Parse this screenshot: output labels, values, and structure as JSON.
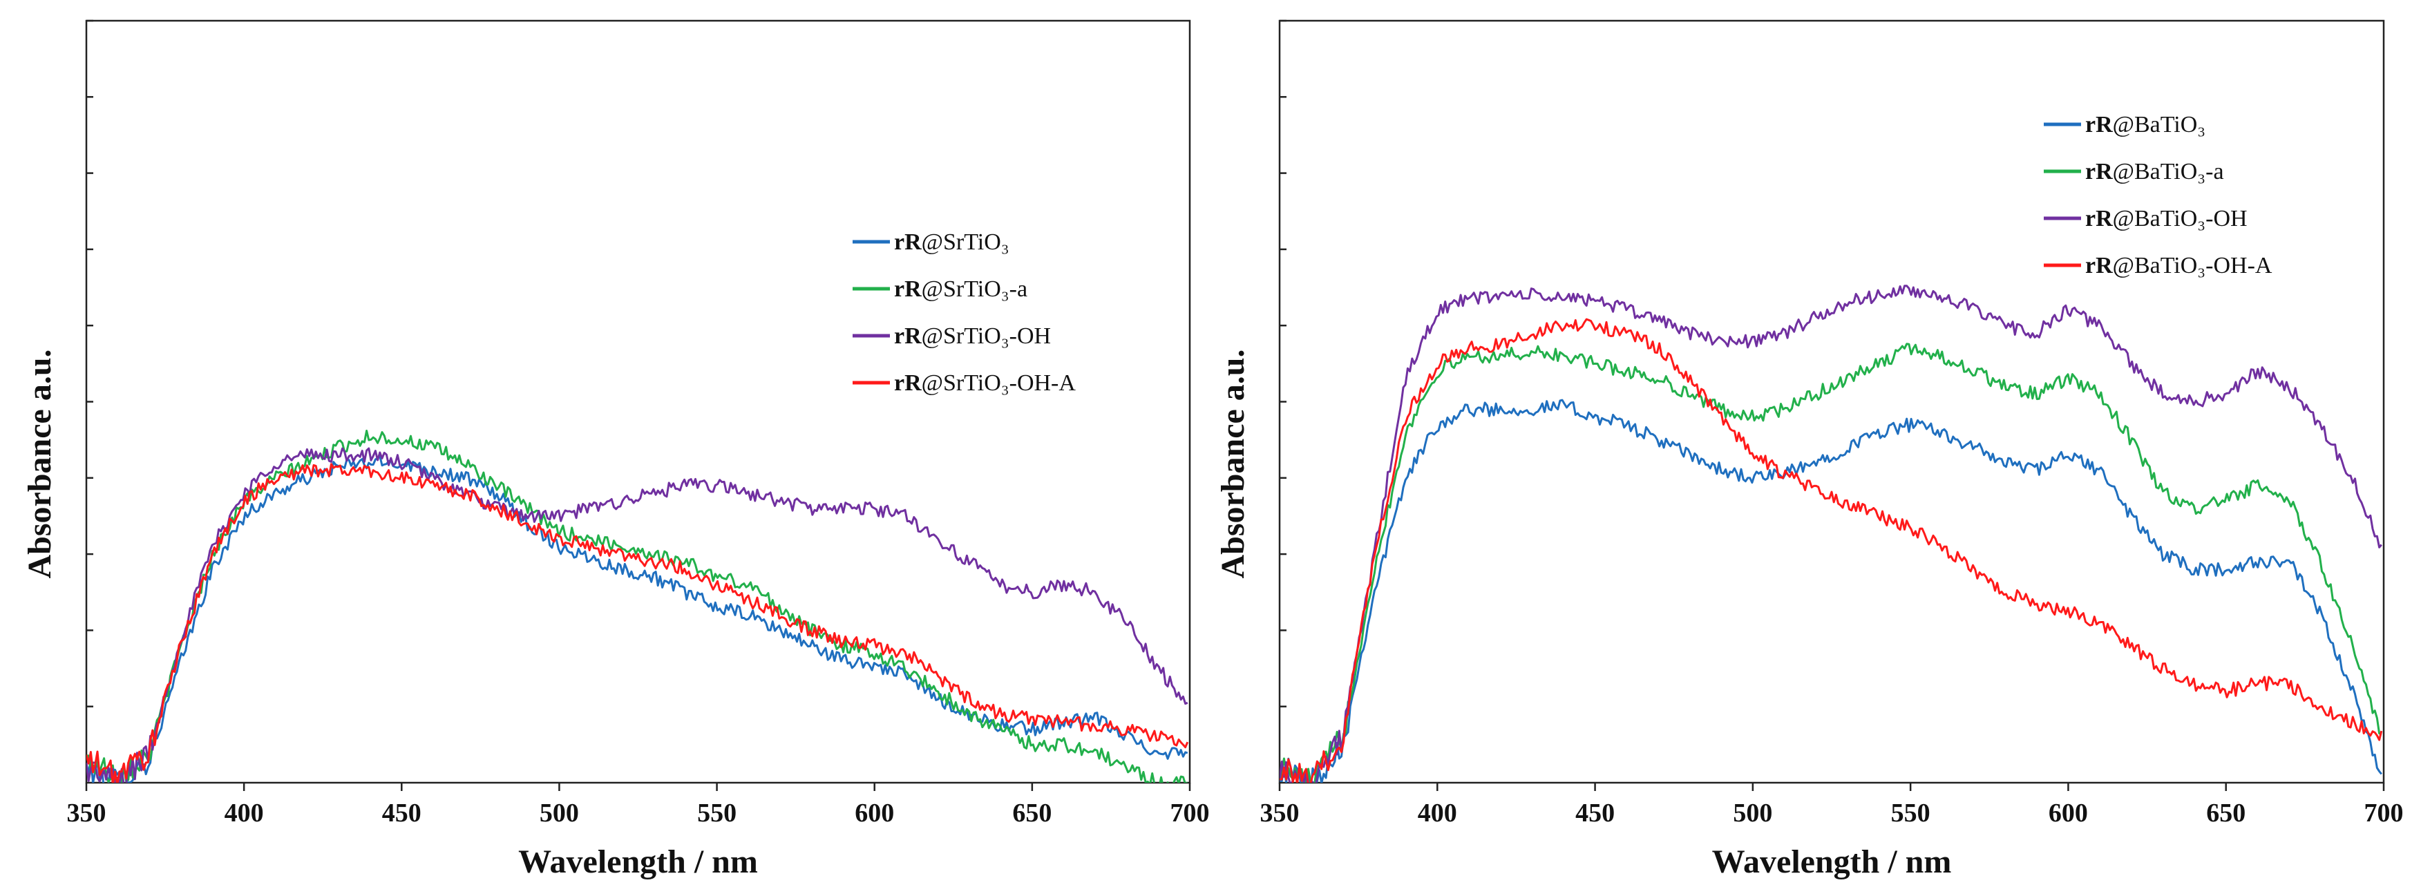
{
  "chart_data": [
    {
      "type": "line",
      "xlabel": "Wavelength / nm",
      "ylabel": "Absorbance a.u.",
      "xlim": [
        350,
        700
      ],
      "ylim": [
        0,
        1.0
      ],
      "xticks": [
        350,
        400,
        450,
        500,
        550,
        600,
        650,
        700
      ],
      "yticks_unlabeled": [
        0.1,
        0.2,
        0.3,
        0.4,
        0.5,
        0.6,
        0.7,
        0.8,
        0.9,
        1.0
      ],
      "legend_position": "upper-right",
      "series": [
        {
          "name": "rR@SrTiO₃",
          "label_bold": "rR",
          "label_rest": "@SrTiO₃",
          "color": "#1f6fbf",
          "x": [
            350,
            360,
            370,
            380,
            390,
            400,
            410,
            420,
            430,
            440,
            450,
            460,
            470,
            480,
            490,
            500,
            510,
            520,
            530,
            540,
            550,
            560,
            570,
            580,
            590,
            600,
            610,
            620,
            630,
            640,
            650,
            660,
            670,
            680,
            690,
            700
          ],
          "y": [
            0.02,
            0.0,
            0.03,
            0.16,
            0.28,
            0.35,
            0.38,
            0.4,
            0.415,
            0.42,
            0.42,
            0.41,
            0.4,
            0.38,
            0.34,
            0.31,
            0.295,
            0.28,
            0.27,
            0.25,
            0.23,
            0.22,
            0.2,
            0.18,
            0.16,
            0.155,
            0.14,
            0.11,
            0.09,
            0.075,
            0.07,
            0.08,
            0.085,
            0.06,
            0.04,
            0.04
          ]
        },
        {
          "name": "rR@SrTiO₃-a",
          "label_bold": "rR",
          "label_rest": "@SrTiO₃-a",
          "color": "#22b04b",
          "x": [
            350,
            360,
            370,
            380,
            390,
            400,
            410,
            420,
            430,
            440,
            450,
            460,
            470,
            480,
            490,
            500,
            510,
            520,
            530,
            540,
            550,
            560,
            570,
            580,
            590,
            600,
            610,
            620,
            630,
            640,
            650,
            660,
            670,
            680,
            690,
            700
          ],
          "y": [
            0.03,
            0.01,
            0.04,
            0.18,
            0.3,
            0.37,
            0.4,
            0.42,
            0.44,
            0.455,
            0.45,
            0.44,
            0.42,
            0.39,
            0.36,
            0.33,
            0.32,
            0.31,
            0.3,
            0.29,
            0.27,
            0.26,
            0.23,
            0.2,
            0.18,
            0.17,
            0.15,
            0.12,
            0.09,
            0.07,
            0.05,
            0.05,
            0.04,
            0.02,
            0.0,
            0.0
          ]
        },
        {
          "name": "rR@SrTiO₃-OH",
          "label_bold": "rR",
          "label_rest": "@SrTiO₃-OH",
          "color": "#7030a0",
          "x": [
            350,
            360,
            370,
            380,
            390,
            400,
            410,
            420,
            430,
            440,
            450,
            460,
            470,
            480,
            490,
            500,
            510,
            520,
            530,
            540,
            550,
            560,
            570,
            580,
            590,
            600,
            610,
            620,
            630,
            640,
            650,
            660,
            670,
            680,
            690,
            700
          ],
          "y": [
            0.02,
            0.0,
            0.04,
            0.19,
            0.31,
            0.38,
            0.42,
            0.43,
            0.43,
            0.43,
            0.42,
            0.4,
            0.38,
            0.36,
            0.35,
            0.35,
            0.36,
            0.37,
            0.38,
            0.39,
            0.39,
            0.38,
            0.37,
            0.36,
            0.36,
            0.36,
            0.35,
            0.32,
            0.29,
            0.26,
            0.25,
            0.26,
            0.25,
            0.21,
            0.15,
            0.1
          ]
        },
        {
          "name": "rR@SrTiO₃-OH-A",
          "label_bold": "rR",
          "label_rest": "@SrTiO₃-OH-A",
          "color": "#ff1a1a",
          "x": [
            350,
            360,
            370,
            380,
            390,
            400,
            410,
            420,
            430,
            440,
            450,
            460,
            470,
            480,
            490,
            500,
            510,
            520,
            530,
            540,
            550,
            560,
            570,
            580,
            590,
            600,
            610,
            620,
            630,
            640,
            650,
            660,
            670,
            680,
            690,
            700
          ],
          "y": [
            0.03,
            0.01,
            0.04,
            0.18,
            0.3,
            0.37,
            0.4,
            0.41,
            0.41,
            0.41,
            0.4,
            0.39,
            0.38,
            0.36,
            0.34,
            0.32,
            0.31,
            0.3,
            0.29,
            0.28,
            0.26,
            0.24,
            0.22,
            0.2,
            0.185,
            0.18,
            0.17,
            0.14,
            0.11,
            0.09,
            0.085,
            0.08,
            0.075,
            0.07,
            0.06,
            0.05
          ]
        }
      ]
    },
    {
      "type": "line",
      "xlabel": "Wavelength / nm",
      "ylabel": "Absorbance a.u.",
      "xlim": [
        350,
        700
      ],
      "ylim": [
        0,
        1.0
      ],
      "xticks": [
        350,
        400,
        450,
        500,
        550,
        600,
        650,
        700
      ],
      "yticks_unlabeled": [
        0.1,
        0.2,
        0.3,
        0.4,
        0.5,
        0.6,
        0.7,
        0.8,
        0.9,
        1.0
      ],
      "legend_position": "upper-right",
      "series": [
        {
          "name": "rR@BaTiO₃",
          "label_bold": "rR",
          "label_rest": "@BaTiO₃",
          "color": "#1f6fbf",
          "x": [
            350,
            360,
            370,
            380,
            390,
            400,
            410,
            420,
            430,
            440,
            450,
            460,
            470,
            480,
            490,
            500,
            510,
            520,
            530,
            540,
            550,
            560,
            570,
            580,
            590,
            600,
            610,
            620,
            630,
            640,
            650,
            660,
            670,
            680,
            690,
            700
          ],
          "y": [
            0.02,
            0.0,
            0.05,
            0.25,
            0.4,
            0.47,
            0.49,
            0.49,
            0.49,
            0.495,
            0.48,
            0.47,
            0.45,
            0.43,
            0.41,
            0.4,
            0.405,
            0.42,
            0.44,
            0.46,
            0.47,
            0.46,
            0.44,
            0.42,
            0.41,
            0.43,
            0.41,
            0.35,
            0.3,
            0.28,
            0.28,
            0.29,
            0.29,
            0.22,
            0.12,
            0.0
          ]
        },
        {
          "name": "rR@BaTiO₃-a",
          "label_bold": "rR",
          "label_rest": "@BaTiO₃-a",
          "color": "#22b04b",
          "x": [
            350,
            360,
            370,
            380,
            390,
            400,
            410,
            420,
            430,
            440,
            450,
            460,
            470,
            480,
            490,
            500,
            510,
            520,
            530,
            540,
            550,
            560,
            570,
            580,
            590,
            600,
            610,
            620,
            630,
            640,
            650,
            660,
            670,
            680,
            690,
            700
          ],
          "y": [
            0.02,
            0.0,
            0.06,
            0.28,
            0.46,
            0.54,
            0.56,
            0.56,
            0.565,
            0.56,
            0.55,
            0.54,
            0.53,
            0.51,
            0.49,
            0.48,
            0.49,
            0.51,
            0.53,
            0.55,
            0.57,
            0.56,
            0.54,
            0.52,
            0.51,
            0.53,
            0.51,
            0.45,
            0.38,
            0.36,
            0.37,
            0.39,
            0.37,
            0.29,
            0.18,
            0.05
          ]
        },
        {
          "name": "rR@BaTiO₃-OH",
          "label_bold": "rR",
          "label_rest": "@BaTiO₃-OH",
          "color": "#7030a0",
          "x": [
            350,
            360,
            370,
            380,
            390,
            400,
            410,
            420,
            430,
            440,
            450,
            460,
            470,
            480,
            490,
            500,
            510,
            520,
            530,
            540,
            550,
            560,
            570,
            580,
            590,
            600,
            610,
            620,
            630,
            640,
            650,
            660,
            670,
            680,
            690,
            700
          ],
          "y": [
            0.02,
            0.0,
            0.06,
            0.3,
            0.53,
            0.62,
            0.635,
            0.64,
            0.64,
            0.635,
            0.635,
            0.62,
            0.61,
            0.59,
            0.58,
            0.58,
            0.59,
            0.61,
            0.63,
            0.64,
            0.645,
            0.64,
            0.62,
            0.6,
            0.59,
            0.62,
            0.6,
            0.55,
            0.51,
            0.5,
            0.51,
            0.54,
            0.52,
            0.47,
            0.4,
            0.3
          ]
        },
        {
          "name": "rR@BaTiO₃-OH-A",
          "label_bold": "rR",
          "label_rest": "@BaTiO₃-OH-A",
          "color": "#ff1a1a",
          "x": [
            350,
            360,
            370,
            380,
            390,
            400,
            410,
            420,
            430,
            440,
            450,
            460,
            470,
            480,
            490,
            500,
            510,
            520,
            530,
            540,
            550,
            560,
            570,
            580,
            590,
            600,
            610,
            620,
            630,
            640,
            650,
            660,
            670,
            680,
            690,
            700
          ],
          "y": [
            0.02,
            0.0,
            0.06,
            0.3,
            0.48,
            0.55,
            0.57,
            0.575,
            0.59,
            0.6,
            0.6,
            0.59,
            0.57,
            0.53,
            0.48,
            0.43,
            0.405,
            0.385,
            0.365,
            0.35,
            0.335,
            0.31,
            0.28,
            0.25,
            0.235,
            0.225,
            0.21,
            0.18,
            0.15,
            0.13,
            0.12,
            0.13,
            0.13,
            0.1,
            0.08,
            0.06
          ]
        }
      ]
    }
  ]
}
